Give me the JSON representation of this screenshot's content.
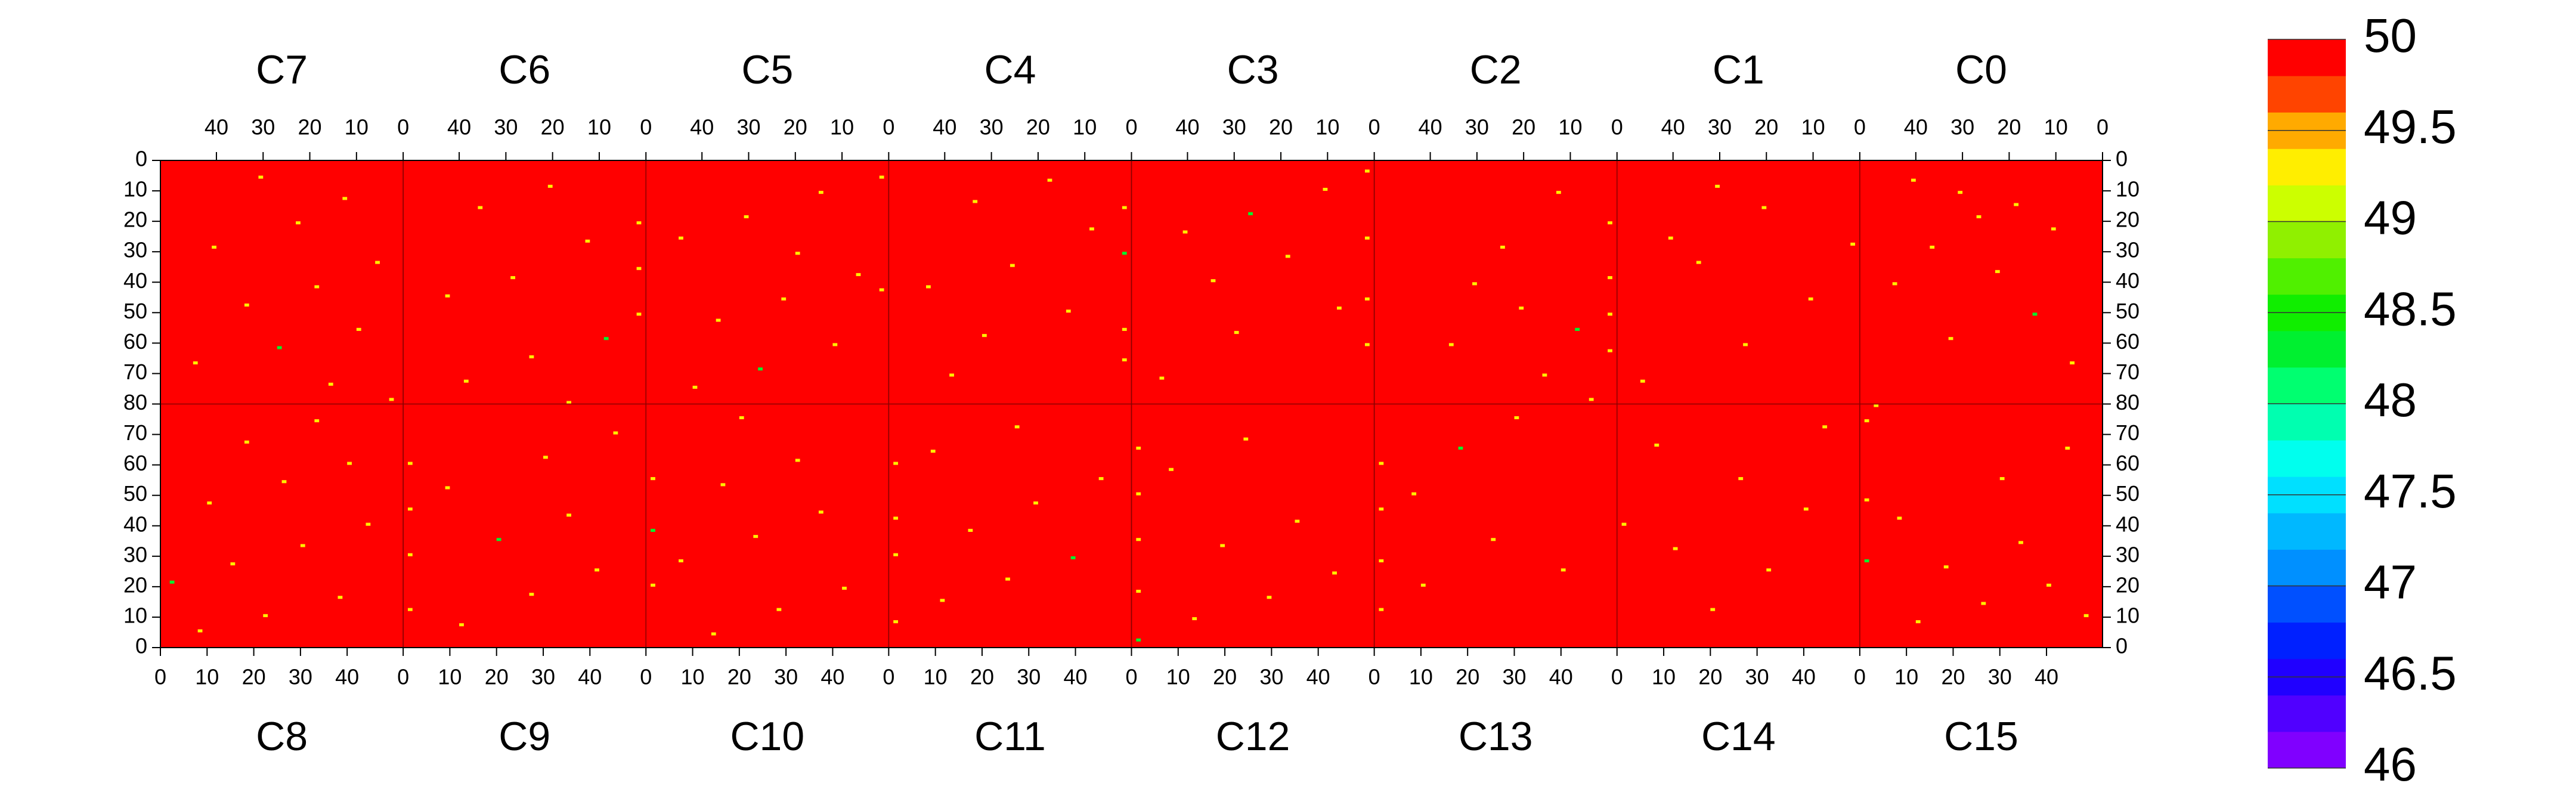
{
  "chart_data": {
    "type": "heatmap",
    "xlim": [
      0,
      52
    ],
    "ylim": [
      0,
      80
    ],
    "top_xticks": [
      40,
      30,
      20,
      10,
      0
    ],
    "bottom_xticks": [
      0,
      10,
      20,
      30,
      40
    ],
    "yticks": [
      0,
      10,
      20,
      30,
      40,
      50,
      60,
      70,
      80
    ],
    "fill_value": 50,
    "zlim": [
      46,
      50
    ],
    "zticks": [
      46,
      46.5,
      47,
      47.5,
      48,
      48.5,
      49,
      49.5,
      50
    ],
    "colors": [
      "#8000ff",
      "#5000ff",
      "#2000ff",
      "#0020ff",
      "#0050ff",
      "#0090ff",
      "#00b8ff",
      "#00e0ff",
      "#00ffee",
      "#00ffb0",
      "#00ff70",
      "#00f030",
      "#10ee00",
      "#50f000",
      "#90f000",
      "#ccff00",
      "#ffee00",
      "#ffaa00",
      "#ff4400",
      "#ff0000"
    ],
    "top": [
      {
        "name": "C7",
        "cells": [
          [
            30,
            5,
            49.3
          ],
          [
            12,
            12,
            49.2
          ],
          [
            22,
            20,
            49.3
          ],
          [
            40,
            28,
            49.4
          ],
          [
            5,
            33,
            49.2
          ],
          [
            18,
            41,
            49.3
          ],
          [
            33,
            47,
            49.2
          ],
          [
            9,
            55,
            49.3
          ],
          [
            26,
            61,
            48.4
          ],
          [
            44,
            66,
            49.3
          ],
          [
            15,
            73,
            49.2
          ],
          [
            2,
            78,
            49.3
          ]
        ]
      },
      {
        "name": "C6",
        "cells": [
          [
            1,
            20,
            49.2
          ],
          [
            1,
            35,
            49.3
          ],
          [
            1,
            50,
            49.2
          ],
          [
            20,
            8,
            49.3
          ],
          [
            35,
            15,
            49.4
          ],
          [
            12,
            26,
            49.3
          ],
          [
            28,
            38,
            49.2
          ],
          [
            42,
            44,
            49.3
          ],
          [
            8,
            58,
            48.4
          ],
          [
            24,
            64,
            49.3
          ],
          [
            38,
            72,
            49.2
          ],
          [
            16,
            79,
            49.3
          ]
        ]
      },
      {
        "name": "C5",
        "cells": [
          [
            1,
            5,
            49.3
          ],
          [
            1,
            42,
            49.2
          ],
          [
            14,
            10,
            49.3
          ],
          [
            30,
            18,
            49.2
          ],
          [
            44,
            25,
            49.3
          ],
          [
            6,
            37,
            49.3
          ],
          [
            22,
            45,
            49.4
          ],
          [
            36,
            52,
            49.2
          ],
          [
            11,
            60,
            49.3
          ],
          [
            27,
            68,
            48.4
          ],
          [
            41,
            74,
            49.3
          ],
          [
            19,
            30,
            49.2
          ]
        ]
      },
      {
        "name": "C4",
        "cells": [
          [
            1,
            15,
            49.3
          ],
          [
            1,
            30,
            48.4
          ],
          [
            1,
            55,
            49.2
          ],
          [
            1,
            65,
            49.3
          ],
          [
            17,
            6,
            49.2
          ],
          [
            33,
            13,
            49.3
          ],
          [
            8,
            22,
            49.3
          ],
          [
            25,
            34,
            49.2
          ],
          [
            43,
            41,
            49.3
          ],
          [
            13,
            49,
            49.4
          ],
          [
            31,
            57,
            49.2
          ],
          [
            38,
            70,
            49.3
          ]
        ]
      },
      {
        "name": "C3",
        "cells": [
          [
            1,
            3,
            49.2
          ],
          [
            1,
            25,
            49.3
          ],
          [
            1,
            45,
            49.3
          ],
          [
            1,
            60,
            49.2
          ],
          [
            10,
            9,
            49.3
          ],
          [
            26,
            17,
            48.4
          ],
          [
            40,
            23,
            49.3
          ],
          [
            18,
            31,
            49.2
          ],
          [
            34,
            39,
            49.3
          ],
          [
            7,
            48,
            49.4
          ],
          [
            29,
            56,
            49.2
          ],
          [
            45,
            71,
            49.3
          ]
        ]
      },
      {
        "name": "C2",
        "cells": [
          [
            1,
            20,
            49.3
          ],
          [
            1,
            38,
            49.2
          ],
          [
            1,
            50,
            49.3
          ],
          [
            1,
            62,
            49.2
          ],
          [
            12,
            10,
            49.3
          ],
          [
            24,
            28,
            49.3
          ],
          [
            30,
            40,
            49.2
          ],
          [
            20,
            48,
            49.3
          ],
          [
            8,
            55,
            48.4
          ],
          [
            35,
            60,
            49.2
          ],
          [
            15,
            70,
            49.3
          ],
          [
            5,
            78,
            49.2
          ]
        ]
      },
      {
        "name": "C1",
        "cells": [
          [
            30,
            8,
            49.3
          ],
          [
            20,
            15,
            49.2
          ],
          [
            40,
            25,
            49.3
          ],
          [
            34,
            33,
            49.2
          ],
          [
            10,
            45,
            49.3
          ],
          [
            24,
            60,
            49.2
          ],
          [
            46,
            72,
            49.3
          ],
          [
            1,
            27,
            49.2
          ]
        ]
      },
      {
        "name": "C0",
        "cells": [
          [
            40,
            6,
            49.3
          ],
          [
            30,
            10,
            49.2
          ],
          [
            18,
            14,
            49.3
          ],
          [
            26,
            18,
            49.2
          ],
          [
            10,
            22,
            49.3
          ],
          [
            36,
            28,
            49.3
          ],
          [
            22,
            36,
            49.2
          ],
          [
            44,
            40,
            49.3
          ],
          [
            14,
            50,
            48.4
          ],
          [
            32,
            58,
            49.3
          ],
          [
            6,
            66,
            49.2
          ],
          [
            48,
            80,
            49.3
          ]
        ]
      }
    ],
    "bottom": [
      {
        "name": "C8",
        "cells": [
          [
            8,
            5,
            49.3
          ],
          [
            22,
            10,
            49.2
          ],
          [
            38,
            16,
            49.3
          ],
          [
            2,
            21,
            48.4
          ],
          [
            15,
            27,
            49.2
          ],
          [
            30,
            33,
            49.3
          ],
          [
            44,
            40,
            49.3
          ],
          [
            10,
            47,
            49.2
          ],
          [
            26,
            54,
            49.4
          ],
          [
            40,
            60,
            49.3
          ],
          [
            18,
            67,
            49.2
          ],
          [
            33,
            74,
            49.3
          ]
        ]
      },
      {
        "name": "C9",
        "cells": [
          [
            1,
            12,
            49.3
          ],
          [
            1,
            30,
            49.2
          ],
          [
            1,
            45,
            49.4
          ],
          [
            1,
            60,
            49.3
          ],
          [
            12,
            7,
            49.2
          ],
          [
            27,
            17,
            49.3
          ],
          [
            41,
            25,
            49.2
          ],
          [
            20,
            35,
            48.4
          ],
          [
            35,
            43,
            49.3
          ],
          [
            9,
            52,
            49.3
          ],
          [
            30,
            62,
            49.2
          ],
          [
            45,
            70,
            49.3
          ]
        ]
      },
      {
        "name": "C10",
        "cells": [
          [
            1,
            20,
            49.3
          ],
          [
            1,
            38,
            48.4
          ],
          [
            1,
            55,
            49.2
          ],
          [
            14,
            4,
            49.3
          ],
          [
            28,
            12,
            49.2
          ],
          [
            42,
            19,
            49.3
          ],
          [
            7,
            28,
            49.3
          ],
          [
            23,
            36,
            49.2
          ],
          [
            37,
            44,
            49.3
          ],
          [
            16,
            53,
            49.4
          ],
          [
            32,
            61,
            49.2
          ],
          [
            20,
            75,
            49.3
          ]
        ]
      },
      {
        "name": "C11",
        "cells": [
          [
            1,
            8,
            49.3
          ],
          [
            1,
            30,
            49.2
          ],
          [
            1,
            42,
            49.3
          ],
          [
            1,
            60,
            49.2
          ],
          [
            11,
            15,
            49.3
          ],
          [
            25,
            22,
            49.3
          ],
          [
            39,
            29,
            48.4
          ],
          [
            17,
            38,
            49.2
          ],
          [
            31,
            47,
            49.3
          ],
          [
            45,
            55,
            49.2
          ],
          [
            9,
            64,
            49.3
          ],
          [
            27,
            72,
            49.4
          ]
        ]
      },
      {
        "name": "C12",
        "cells": [
          [
            1,
            2,
            48.4
          ],
          [
            1,
            18,
            49.3
          ],
          [
            1,
            35,
            49.2
          ],
          [
            1,
            50,
            49.3
          ],
          [
            1,
            65,
            49.2
          ],
          [
            13,
            9,
            49.3
          ],
          [
            29,
            16,
            49.2
          ],
          [
            43,
            24,
            49.3
          ],
          [
            19,
            33,
            49.3
          ],
          [
            35,
            41,
            49.2
          ],
          [
            8,
            58,
            49.3
          ],
          [
            24,
            68,
            49.4
          ]
        ]
      },
      {
        "name": "C13",
        "cells": [
          [
            1,
            12,
            49.3
          ],
          [
            1,
            28,
            49.2
          ],
          [
            1,
            45,
            49.3
          ],
          [
            1,
            60,
            49.2
          ],
          [
            10,
            20,
            49.3
          ],
          [
            25,
            35,
            49.2
          ],
          [
            8,
            50,
            49.3
          ],
          [
            18,
            65,
            48.4
          ],
          [
            30,
            75,
            49.3
          ],
          [
            40,
            25,
            49.2
          ]
        ]
      },
      {
        "name": "C14",
        "cells": [
          [
            1,
            40,
            49.3
          ],
          [
            20,
            12,
            49.2
          ],
          [
            32,
            25,
            49.3
          ],
          [
            12,
            32,
            49.2
          ],
          [
            40,
            45,
            49.3
          ],
          [
            26,
            55,
            49.2
          ],
          [
            8,
            66,
            49.3
          ],
          [
            44,
            72,
            49.2
          ]
        ]
      },
      {
        "name": "C15",
        "cells": [
          [
            1,
            28,
            48.4
          ],
          [
            1,
            48,
            49.3
          ],
          [
            1,
            74,
            49.3
          ],
          [
            12,
            8,
            49.2
          ],
          [
            26,
            14,
            49.3
          ],
          [
            40,
            20,
            49.2
          ],
          [
            18,
            26,
            49.3
          ],
          [
            34,
            34,
            49.3
          ],
          [
            48,
            10,
            49.2
          ],
          [
            8,
            42,
            49.3
          ],
          [
            30,
            55,
            49.2
          ],
          [
            44,
            65,
            49.3
          ]
        ]
      }
    ]
  }
}
